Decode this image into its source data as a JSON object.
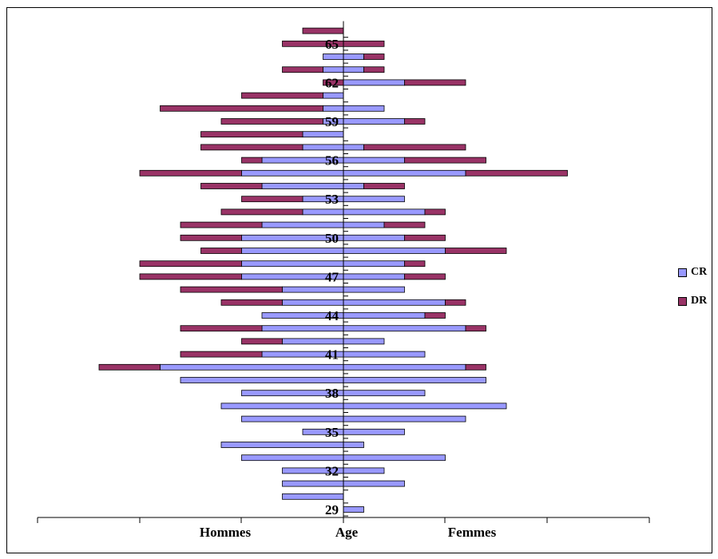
{
  "chart_data": {
    "type": "bar",
    "orientation": "horizontal-population-pyramid",
    "stacked": true,
    "xlabel_left": "Hommes",
    "xlabel_center": "Age",
    "xlabel_right": "Femmes",
    "ylabels": [
      "29",
      "32",
      "35",
      "38",
      "41",
      "44",
      "47",
      "50",
      "53",
      "56",
      "59",
      "62",
      "65"
    ],
    "ages": [
      29,
      30,
      31,
      32,
      33,
      34,
      35,
      36,
      37,
      38,
      39,
      40,
      41,
      42,
      43,
      44,
      45,
      46,
      47,
      48,
      49,
      50,
      51,
      52,
      53,
      54,
      55,
      56,
      57,
      58,
      59,
      60,
      61,
      62,
      63,
      64,
      65,
      66
    ],
    "colors": {
      "CR": "#9999ff",
      "DR": "#993366"
    },
    "legend_position": "right",
    "series": [
      {
        "name": "CR",
        "hommes": [
          0,
          3,
          3,
          3,
          5,
          6,
          2,
          5,
          6,
          5,
          8,
          9,
          4,
          3,
          4,
          4,
          3,
          3,
          5,
          5,
          5,
          5,
          4,
          2,
          2,
          4,
          5,
          4,
          2,
          2,
          1,
          1,
          1,
          0,
          1,
          1,
          0,
          0
        ],
        "femmes": [
          1,
          0,
          3,
          2,
          5,
          1,
          3,
          6,
          8,
          4,
          7,
          6,
          4,
          2,
          6,
          4,
          5,
          3,
          3,
          3,
          5,
          3,
          2,
          4,
          3,
          1,
          6,
          3,
          1,
          0,
          3,
          2,
          0,
          3,
          1,
          1,
          0,
          0
        ]
      },
      {
        "name": "DR",
        "hommes": [
          0,
          0,
          0,
          0,
          0,
          0,
          0,
          0,
          0,
          0,
          0,
          3,
          4,
          2,
          4,
          0,
          3,
          5,
          5,
          5,
          2,
          3,
          4,
          4,
          3,
          3,
          5,
          1,
          5,
          5,
          5,
          8,
          4,
          1,
          2,
          0,
          3,
          2
        ],
        "femmes": [
          0,
          0,
          0,
          0,
          0,
          0,
          0,
          0,
          0,
          0,
          0,
          1,
          0,
          0,
          1,
          1,
          1,
          0,
          2,
          1,
          3,
          2,
          2,
          1,
          0,
          2,
          5,
          4,
          5,
          0,
          1,
          0,
          0,
          3,
          1,
          1,
          2,
          0
        ]
      }
    ]
  }
}
